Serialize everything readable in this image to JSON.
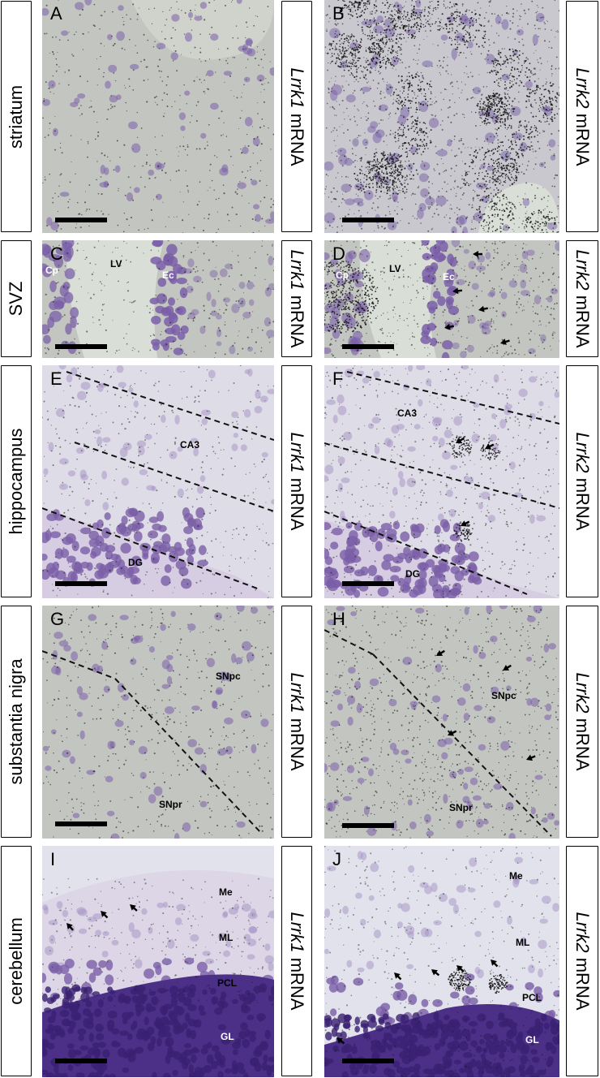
{
  "rows": [
    {
      "region": "striatum"
    },
    {
      "region": "SVZ"
    },
    {
      "region": "hippocampus"
    },
    {
      "region": "substantia nigra"
    },
    {
      "region": "cerebellum"
    }
  ],
  "probes": [
    {
      "gene": "Lrrk1",
      "suffix": " mRNA"
    },
    {
      "gene": "Lrrk2",
      "suffix": " mRNA"
    }
  ],
  "panels": {
    "A": {
      "letter": "A"
    },
    "B": {
      "letter": "B"
    },
    "C": {
      "letter": "C",
      "labels": [
        "Cp",
        "LV",
        "Ec"
      ]
    },
    "D": {
      "letter": "D",
      "labels": [
        "Cp",
        "LV",
        "Ec"
      ]
    },
    "E": {
      "letter": "E",
      "labels": [
        "CA3",
        "DG"
      ]
    },
    "F": {
      "letter": "F",
      "labels": [
        "CA3",
        "DG"
      ]
    },
    "G": {
      "letter": "G",
      "labels": [
        "SNpc",
        "SNpr"
      ]
    },
    "H": {
      "letter": "H",
      "labels": [
        "SNpc",
        "SNpr"
      ]
    },
    "I": {
      "letter": "I",
      "labels": [
        "Me",
        "ML",
        "PCL",
        "GL"
      ]
    },
    "J": {
      "letter": "J",
      "labels": [
        "Me",
        "ML",
        "PCL",
        "GL"
      ]
    }
  },
  "colors": {
    "stain": "#7a5fa8",
    "tissue_gray": "#c3c6c0",
    "tissue_light": "#dedce6",
    "lumen": "#d9dfd7"
  }
}
